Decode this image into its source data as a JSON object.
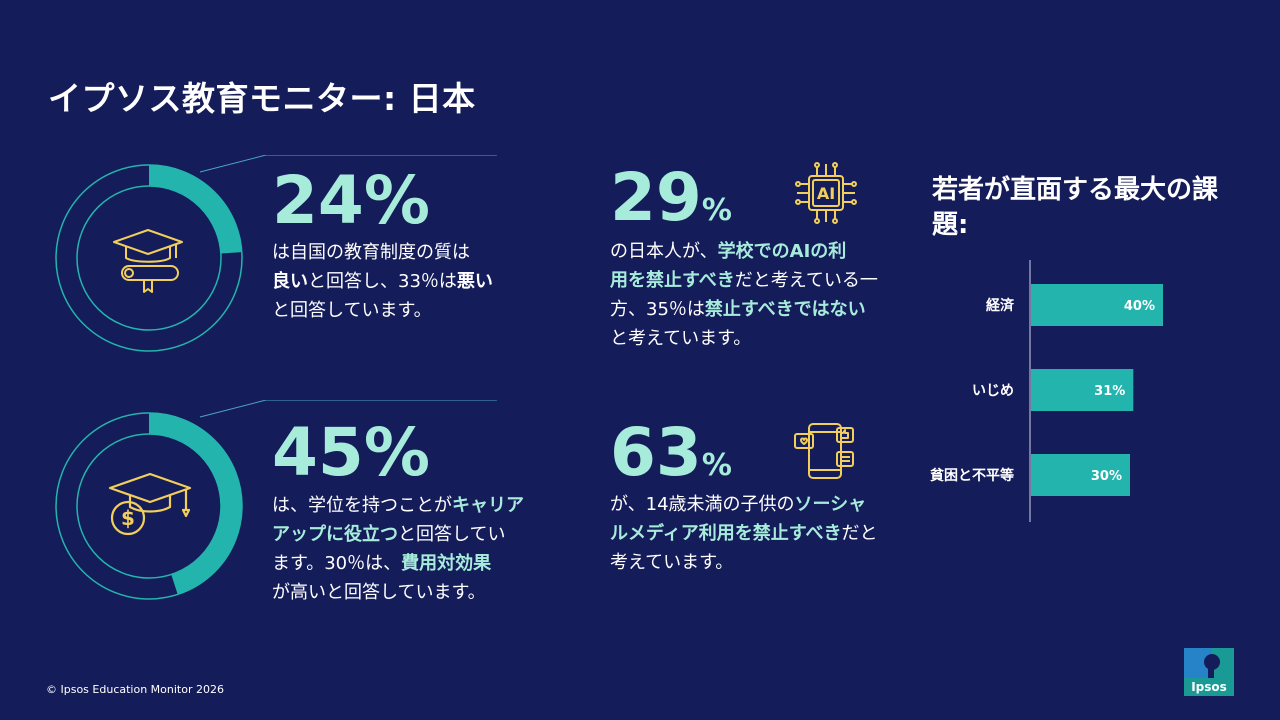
{
  "title": "イプソス教育モニター: 日本",
  "stats": [
    {
      "value": "24%",
      "value_fraction": 0.24,
      "icon": "graduation-diploma-icon",
      "lines": [
        [
          {
            "t": "は自国の教育制度の質は",
            "s": ""
          }
        ],
        [
          {
            "t": "良い",
            "s": "b"
          },
          {
            "t": "と回答し、33％は",
            "s": ""
          },
          {
            "t": "悪い",
            "s": "b"
          }
        ],
        [
          {
            "t": "と回答しています。",
            "s": ""
          }
        ]
      ]
    },
    {
      "value": "45%",
      "value_fraction": 0.45,
      "icon": "graduation-cap-dollar-icon",
      "lines": [
        [
          {
            "t": "は、学位を持つことが",
            "s": ""
          },
          {
            "t": "キャリア",
            "s": "hl"
          }
        ],
        [
          {
            "t": "アップに役立つ",
            "s": "hl"
          },
          {
            "t": "と回答してい",
            "s": ""
          }
        ],
        [
          {
            "t": "ます。30％は、",
            "s": ""
          },
          {
            "t": "費用対効果",
            "s": "hl"
          }
        ],
        [
          {
            "t": "が高いと回答しています。",
            "s": ""
          }
        ]
      ]
    },
    {
      "value_num": "29",
      "value_pct": "%",
      "icon": "ai-chip-icon",
      "lines": [
        [
          {
            "t": "の日本人が、",
            "s": ""
          },
          {
            "t": "学校でのAIの利",
            "s": "hl"
          }
        ],
        [
          {
            "t": "用を禁止すべき",
            "s": "hl"
          },
          {
            "t": "だと考えている一",
            "s": ""
          }
        ],
        [
          {
            "t": "方、35％は",
            "s": ""
          },
          {
            "t": "禁止すべきではない",
            "s": "hl"
          }
        ],
        [
          {
            "t": "と考えています。",
            "s": ""
          }
        ]
      ]
    },
    {
      "value_num": "63",
      "value_pct": "%",
      "icon": "social-media-phone-icon",
      "lines": [
        [
          {
            "t": "が、14歳未満の子供の",
            "s": ""
          },
          {
            "t": "ソーシャ",
            "s": "hl"
          }
        ],
        [
          {
            "t": "ルメディア利用を禁止すべき",
            "s": "hl"
          },
          {
            "t": "だと",
            "s": ""
          }
        ],
        [
          {
            "t": "考えています。",
            "s": ""
          }
        ]
      ]
    }
  ],
  "chart_data": {
    "type": "bar",
    "orientation": "horizontal",
    "title": "若者が直面する最大の課題:",
    "categories": [
      "経済",
      "いじめ",
      "貧困と不平等"
    ],
    "values": [
      40,
      31,
      30
    ],
    "value_labels": [
      "40%",
      "31%",
      "30%"
    ],
    "xlim": [
      0,
      100
    ]
  },
  "footer": "© Ipsos Education Monitor 2026",
  "logo_text": "Ipsos",
  "colors": {
    "background": "#151c5a",
    "accent": "#23b5ad",
    "highlight": "#a7ecdb",
    "icon": "#f2cf5b"
  }
}
